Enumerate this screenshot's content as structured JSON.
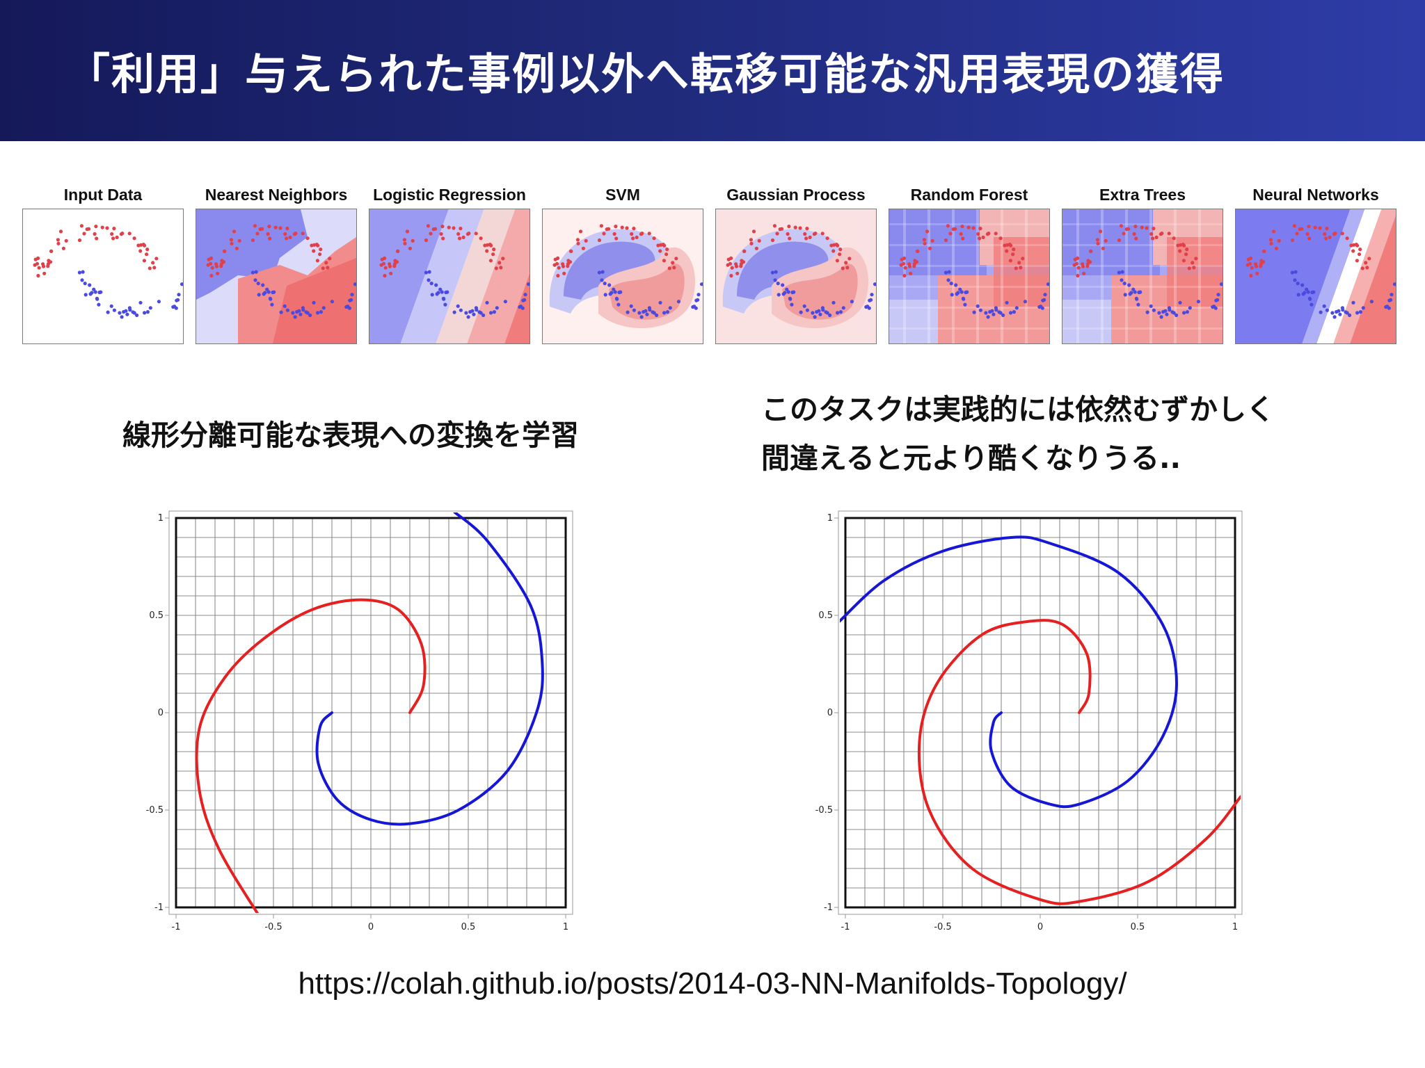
{
  "slide": {
    "title": "「利用」与えられた事例以外へ転移可能な汎用表現の獲得",
    "caption_left": "線形分離可能な表現への変換を学習",
    "caption_right_line1": "このタスクは実践的には依然むずかしく",
    "caption_right_line2": "間違えると元より酷くなりうる..",
    "url": "https://colah.github.io/posts/2014-03-NN-Manifolds-Topology/"
  },
  "classifier_panels": [
    {
      "title": "Input Data",
      "style": "input"
    },
    {
      "title": "Nearest Neighbors",
      "style": "knn"
    },
    {
      "title": "Logistic Regression",
      "style": "logistic"
    },
    {
      "title": "SVM",
      "style": "svm"
    },
    {
      "title": "Gaussian Process",
      "style": "gp"
    },
    {
      "title": "Random Forest",
      "style": "rf"
    },
    {
      "title": "Extra Trees",
      "style": "et"
    },
    {
      "title": "Neural Networks",
      "style": "nn"
    }
  ],
  "colors": {
    "class_red": "#e62020",
    "class_blue": "#1616d6",
    "point_red": "#e0404a",
    "point_blue": "#4a4ae0",
    "region_red": "#f08080",
    "region_blue": "#8080f0"
  },
  "chart_data": [
    {
      "type": "line",
      "xlim": [
        -1,
        1
      ],
      "ylim": [
        -1,
        1
      ],
      "x_ticks": [
        "-1",
        "-0.5",
        "0",
        "0.5",
        "1"
      ],
      "y_ticks": [
        "1",
        "0.5",
        "0",
        "-0.5",
        "-1"
      ],
      "grid": true,
      "series": [
        {
          "color": "#e62020",
          "points": [
            [
              0.2,
              0.0
            ],
            [
              0.27,
              0.14
            ],
            [
              0.26,
              0.35
            ],
            [
              0.14,
              0.53
            ],
            [
              -0.05,
              0.58
            ],
            [
              -0.3,
              0.53
            ],
            [
              -0.55,
              0.38
            ],
            [
              -0.75,
              0.18
            ],
            [
              -0.88,
              -0.08
            ],
            [
              -0.88,
              -0.4
            ],
            [
              -0.78,
              -0.7
            ],
            [
              -0.57,
              -1.05
            ]
          ]
        },
        {
          "color": "#1616d6",
          "points": [
            [
              -0.2,
              0.0
            ],
            [
              -0.26,
              -0.07
            ],
            [
              -0.27,
              -0.26
            ],
            [
              -0.17,
              -0.45
            ],
            [
              0.0,
              -0.55
            ],
            [
              0.2,
              -0.57
            ],
            [
              0.45,
              -0.5
            ],
            [
              0.7,
              -0.3
            ],
            [
              0.85,
              0.0
            ],
            [
              0.88,
              0.25
            ],
            [
              0.82,
              0.55
            ],
            [
              0.6,
              0.88
            ],
            [
              0.43,
              1.03
            ]
          ]
        }
      ]
    },
    {
      "type": "line",
      "xlim": [
        -1,
        1
      ],
      "ylim": [
        -1,
        1
      ],
      "x_ticks": [
        "-1",
        "-0.5",
        "0",
        "0.5",
        "1"
      ],
      "y_ticks": [
        "1",
        "0.5",
        "0",
        "-0.5",
        "-1"
      ],
      "grid": true,
      "series": [
        {
          "color": "#e62020",
          "points": [
            [
              0.2,
              0.0
            ],
            [
              0.25,
              0.1
            ],
            [
              0.24,
              0.3
            ],
            [
              0.12,
              0.45
            ],
            [
              -0.05,
              0.47
            ],
            [
              -0.3,
              0.4
            ],
            [
              -0.53,
              0.15
            ],
            [
              -0.62,
              -0.15
            ],
            [
              -0.57,
              -0.5
            ],
            [
              -0.35,
              -0.8
            ],
            [
              0.0,
              -0.96
            ],
            [
              0.2,
              -0.97
            ],
            [
              0.55,
              -0.87
            ],
            [
              0.85,
              -0.65
            ],
            [
              1.03,
              -0.43
            ]
          ]
        },
        {
          "color": "#1616d6",
          "points": [
            [
              -0.2,
              0.0
            ],
            [
              -0.24,
              -0.05
            ],
            [
              -0.25,
              -0.2
            ],
            [
              -0.15,
              -0.38
            ],
            [
              0.05,
              -0.47
            ],
            [
              0.2,
              -0.47
            ],
            [
              0.45,
              -0.35
            ],
            [
              0.63,
              -0.12
            ],
            [
              0.7,
              0.15
            ],
            [
              0.63,
              0.45
            ],
            [
              0.4,
              0.72
            ],
            [
              0.05,
              0.87
            ],
            [
              -0.15,
              0.9
            ],
            [
              -0.5,
              0.83
            ],
            [
              -0.8,
              0.68
            ],
            [
              -1.03,
              0.47
            ]
          ]
        }
      ]
    }
  ]
}
